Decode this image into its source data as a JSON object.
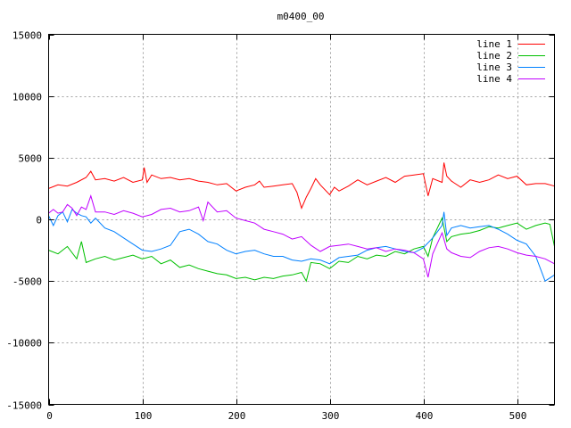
{
  "chart_data": {
    "type": "line",
    "title": "m0400_00",
    "xlabel": "",
    "ylabel": "",
    "xlim": [
      0,
      540
    ],
    "ylim": [
      -15000,
      15000
    ],
    "x_ticks": [
      0,
      100,
      200,
      300,
      400,
      500
    ],
    "y_ticks": [
      -15000,
      -10000,
      -5000,
      0,
      5000,
      10000,
      15000
    ],
    "grid": true,
    "legend_position": "top-right",
    "series": [
      {
        "name": "line 1",
        "color": "#ff0000",
        "x": [
          0,
          10,
          20,
          30,
          40,
          45,
          50,
          60,
          70,
          80,
          90,
          100,
          102,
          105,
          110,
          120,
          130,
          140,
          150,
          160,
          170,
          180,
          190,
          200,
          210,
          220,
          225,
          230,
          240,
          250,
          260,
          265,
          270,
          275,
          280,
          285,
          290,
          300,
          305,
          310,
          320,
          330,
          340,
          350,
          360,
          370,
          380,
          390,
          400,
          405,
          410,
          420,
          422,
          425,
          430,
          440,
          450,
          460,
          470,
          480,
          490,
          500,
          510,
          520,
          530,
          540
        ],
        "values": [
          2500,
          2800,
          2700,
          3000,
          3400,
          3900,
          3200,
          3300,
          3100,
          3400,
          3000,
          3200,
          4200,
          3000,
          3600,
          3300,
          3400,
          3200,
          3300,
          3100,
          3000,
          2800,
          2900,
          2300,
          2600,
          2800,
          3100,
          2600,
          2700,
          2800,
          2900,
          2200,
          900,
          1800,
          2500,
          3300,
          2800,
          2000,
          2600,
          2300,
          2700,
          3200,
          2800,
          3100,
          3400,
          3000,
          3500,
          3600,
          3700,
          1900,
          3300,
          3000,
          4600,
          3500,
          3100,
          2600,
          3200,
          3000,
          3200,
          3600,
          3300,
          3500,
          2800,
          2900,
          2900,
          2700
        ]
      },
      {
        "name": "line 2",
        "color": "#00c000",
        "x": [
          0,
          10,
          20,
          30,
          35,
          40,
          50,
          60,
          70,
          80,
          90,
          100,
          110,
          120,
          130,
          140,
          150,
          160,
          170,
          180,
          190,
          200,
          210,
          220,
          230,
          240,
          250,
          260,
          270,
          275,
          280,
          290,
          300,
          310,
          320,
          330,
          340,
          350,
          360,
          370,
          380,
          390,
          400,
          405,
          410,
          420,
          425,
          430,
          440,
          450,
          460,
          470,
          480,
          490,
          500,
          510,
          520,
          530,
          535,
          540
        ],
        "values": [
          -2500,
          -2800,
          -2200,
          -3200,
          -1800,
          -3500,
          -3200,
          -3000,
          -3300,
          -3100,
          -2900,
          -3200,
          -3000,
          -3600,
          -3300,
          -3900,
          -3700,
          -4000,
          -4200,
          -4400,
          -4500,
          -4800,
          -4700,
          -4900,
          -4700,
          -4800,
          -4600,
          -4500,
          -4300,
          -5000,
          -3500,
          -3600,
          -4000,
          -3400,
          -3500,
          -3000,
          -3200,
          -2900,
          -3000,
          -2600,
          -2800,
          -2400,
          -2200,
          -3000,
          -1500,
          100,
          -1800,
          -1400,
          -1200,
          -1100,
          -900,
          -600,
          -700,
          -500,
          -300,
          -800,
          -500,
          -300,
          -400,
          -2200
        ]
      },
      {
        "name": "line 3",
        "color": "#0080ff",
        "x": [
          0,
          5,
          10,
          15,
          20,
          25,
          30,
          35,
          40,
          45,
          50,
          60,
          70,
          80,
          90,
          100,
          110,
          120,
          130,
          140,
          150,
          160,
          170,
          180,
          190,
          200,
          210,
          220,
          230,
          240,
          250,
          260,
          270,
          280,
          290,
          300,
          310,
          320,
          330,
          340,
          350,
          360,
          370,
          380,
          390,
          400,
          410,
          415,
          420,
          422,
          425,
          430,
          440,
          450,
          460,
          470,
          480,
          490,
          500,
          510,
          520,
          530,
          540
        ],
        "values": [
          300,
          -500,
          300,
          600,
          -200,
          800,
          500,
          300,
          200,
          -300,
          100,
          -700,
          -1000,
          -1500,
          -2000,
          -2500,
          -2600,
          -2400,
          -2100,
          -1000,
          -800,
          -1200,
          -1800,
          -2000,
          -2500,
          -2800,
          -2600,
          -2500,
          -2800,
          -3000,
          -3000,
          -3300,
          -3400,
          -3200,
          -3300,
          -3600,
          -3100,
          -3000,
          -2900,
          -2500,
          -2300,
          -2200,
          -2400,
          -2600,
          -2700,
          -2300,
          -1500,
          -1000,
          -500,
          600,
          -1300,
          -700,
          -500,
          -700,
          -600,
          -500,
          -800,
          -1200,
          -1700,
          -2000,
          -3000,
          -5000,
          -4500
        ]
      },
      {
        "name": "line 4",
        "color": "#c000ff",
        "x": [
          0,
          5,
          10,
          15,
          20,
          25,
          30,
          35,
          40,
          45,
          50,
          60,
          70,
          80,
          90,
          100,
          110,
          120,
          130,
          140,
          150,
          160,
          165,
          170,
          180,
          190,
          200,
          210,
          220,
          230,
          240,
          250,
          260,
          270,
          280,
          290,
          300,
          310,
          320,
          330,
          340,
          350,
          360,
          370,
          380,
          390,
          400,
          405,
          410,
          420,
          425,
          430,
          440,
          450,
          460,
          470,
          480,
          490,
          500,
          510,
          520,
          530,
          540
        ],
        "values": [
          500,
          800,
          500,
          600,
          1200,
          900,
          300,
          1000,
          800,
          1900,
          600,
          600,
          400,
          700,
          500,
          200,
          400,
          800,
          900,
          600,
          700,
          1000,
          -100,
          1400,
          600,
          700,
          100,
          -100,
          -300,
          -800,
          -1000,
          -1200,
          -1600,
          -1400,
          -2100,
          -2600,
          -2200,
          -2100,
          -2000,
          -2200,
          -2400,
          -2300,
          -2600,
          -2400,
          -2500,
          -2700,
          -3200,
          -4700,
          -2800,
          -1100,
          -2400,
          -2700,
          -3000,
          -3100,
          -2600,
          -2300,
          -2200,
          -2400,
          -2700,
          -2900,
          -3000,
          -3200,
          -3600
        ]
      }
    ]
  }
}
